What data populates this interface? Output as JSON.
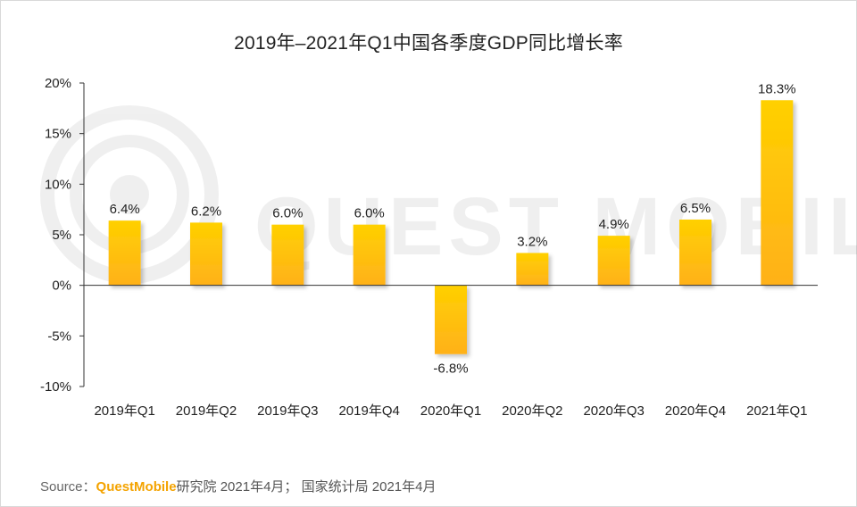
{
  "chart_data": {
    "type": "bar",
    "title": "2019年–2021年Q1中国各季度GDP同比增长率",
    "categories": [
      "2019年Q1",
      "2019年Q2",
      "2019年Q3",
      "2019年Q4",
      "2020年Q1",
      "2020年Q2",
      "2020年Q3",
      "2020年Q4",
      "2021年Q1"
    ],
    "values": [
      6.4,
      6.2,
      6.0,
      6.0,
      -6.8,
      3.2,
      4.9,
      6.5,
      18.3
    ],
    "data_labels": [
      "6.4%",
      "6.2%",
      "6.0%",
      "6.0%",
      "-6.8%",
      "3.2%",
      "4.9%",
      "6.5%",
      "18.3%"
    ],
    "ylim": [
      -10,
      20
    ],
    "yticks": [
      20,
      15,
      10,
      5,
      0,
      -5,
      -10
    ],
    "ytick_labels": [
      "20%",
      "15%",
      "10%",
      "5%",
      "0%",
      "-5%",
      "-10%"
    ],
    "xlabel": "",
    "ylabel": "",
    "grid": false,
    "legend": "none",
    "bar_colors": {
      "top": "#FFD000",
      "bottom": "#FFB11A"
    }
  },
  "watermark": {
    "text": "QUEST MOBILE"
  },
  "source": {
    "label": "Source：",
    "brand": "QuestMobile",
    "text": "研究院 2021年4月； 国家统计局 2021年4月"
  }
}
